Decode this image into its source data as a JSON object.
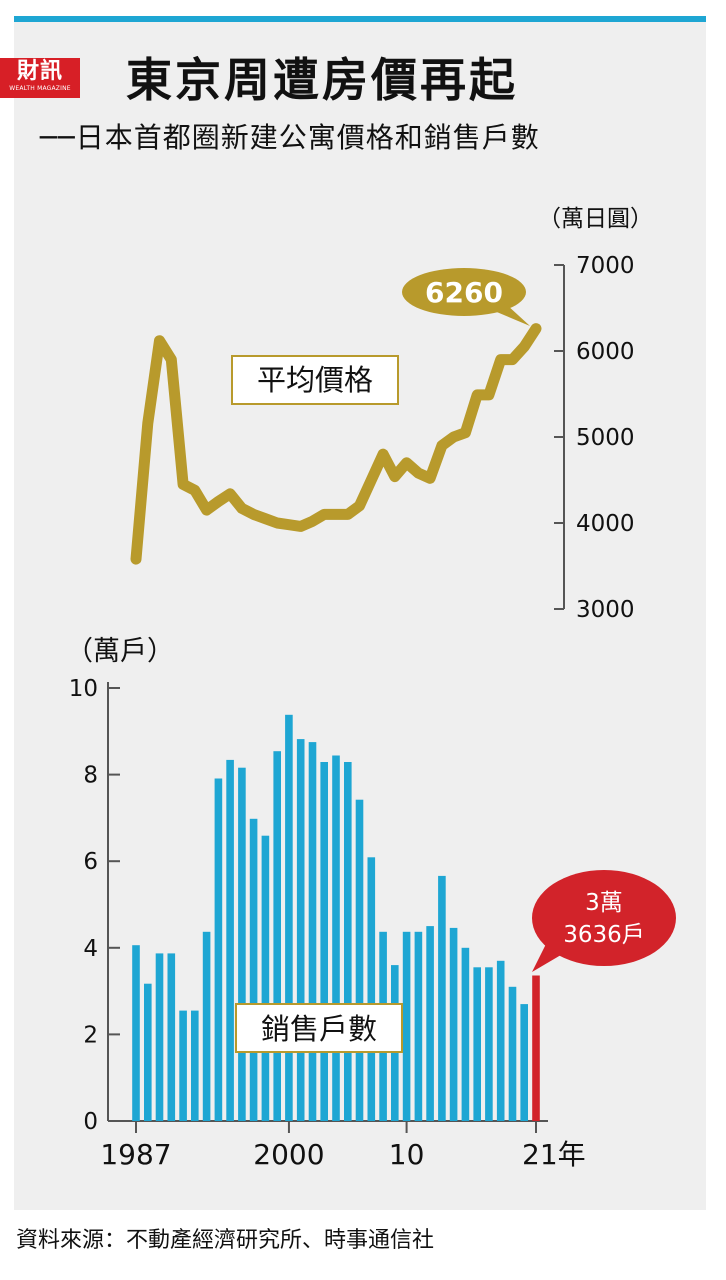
{
  "logo": {
    "name_cn": "財訊",
    "name_en": "WEALTH MAGAZINE"
  },
  "title": "東京周遭房價再起",
  "subtitle": "──日本首都圈新建公寓價格和銷售戶數",
  "source": "資料來源：不動產經濟研究所、時事通信社",
  "colors": {
    "price_line": "#b89a2c",
    "bars": "#1ea6d3",
    "highlight": "#d2232a",
    "rule": "#1ea6d3",
    "panel": "#efefef"
  },
  "chart_data": [
    {
      "type": "line",
      "series_label": "平均價格",
      "y_unit": "（萬日圓）",
      "ylim": [
        3000,
        7000
      ],
      "y_ticks": [
        "7000",
        "6000",
        "5000",
        "4000",
        "3000"
      ],
      "x": [
        1987,
        1988,
        1989,
        1990,
        1991,
        1992,
        1993,
        1994,
        1995,
        1996,
        1997,
        1998,
        1999,
        2000,
        2001,
        2002,
        2003,
        2004,
        2005,
        2006,
        2007,
        2008,
        2009,
        2010,
        2011,
        2012,
        2013,
        2014,
        2015,
        2016,
        2017,
        2018,
        2019,
        2020,
        2021
      ],
      "values": [
        3580,
        5160,
        6120,
        5900,
        4450,
        4380,
        4150,
        4250,
        4340,
        4170,
        4100,
        4050,
        4000,
        3980,
        3960,
        4020,
        4100,
        4100,
        4100,
        4200,
        4500,
        4800,
        4540,
        4700,
        4580,
        4520,
        4900,
        5000,
        5050,
        5490,
        5490,
        5900,
        5900,
        6050,
        6260
      ],
      "callout": "6260"
    },
    {
      "type": "bar",
      "series_label": "銷售戶數",
      "y_unit": "（萬戶）",
      "ylim": [
        0,
        10
      ],
      "y_ticks": [
        "0",
        "2",
        "4",
        "6",
        "8",
        "10"
      ],
      "x_tick_labels": [
        "1987",
        "2000",
        "10",
        "21年"
      ],
      "categories": [
        1987,
        1988,
        1989,
        1990,
        1991,
        1992,
        1993,
        1994,
        1995,
        1996,
        1997,
        1998,
        1999,
        2000,
        2001,
        2002,
        2003,
        2004,
        2005,
        2006,
        2007,
        2008,
        2009,
        2010,
        2011,
        2012,
        2013,
        2014,
        2015,
        2016,
        2017,
        2018,
        2019,
        2020,
        2021
      ],
      "values": [
        4.06,
        3.17,
        3.87,
        3.87,
        2.55,
        2.55,
        4.37,
        7.91,
        8.34,
        8.16,
        6.98,
        6.59,
        8.54,
        9.38,
        8.82,
        8.75,
        8.29,
        8.44,
        8.29,
        7.42,
        6.09,
        4.37,
        3.6,
        4.37,
        4.37,
        4.5,
        5.66,
        4.46,
        4.0,
        3.55,
        3.55,
        3.7,
        3.1,
        2.7,
        3.36
      ],
      "highlight_index": 34,
      "callout": [
        "3萬",
        "3636戶"
      ]
    }
  ]
}
